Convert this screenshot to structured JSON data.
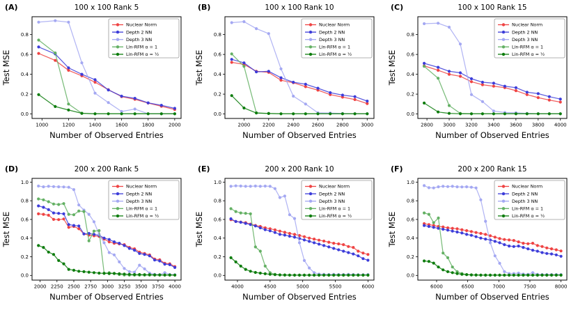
{
  "figure": {
    "xlabel": "Number of Observed Entries",
    "ylabel": "Test MSE"
  },
  "legend": {
    "position": "upper right",
    "items": [
      {
        "label": "Nuclear Norm",
        "color": "#ef4343"
      },
      {
        "label": "Depth 2 NN",
        "color": "#3c3cd9"
      },
      {
        "label": "Depth 3 NN",
        "color": "#a4a8f2"
      },
      {
        "label": "Lin-RFM α = 1",
        "color": "#63b063"
      },
      {
        "label": "Lin-RFM α = ½",
        "color": "#0d7c0d"
      }
    ]
  },
  "chart_data": [
    {
      "type": "line",
      "panel": "(A)",
      "title": "100 x 100 Rank 5",
      "xlabel": "Number of Observed Entries",
      "ylabel": "Test MSE",
      "grid": false,
      "legend_position": "upper right",
      "x": [
        975,
        1100,
        1200,
        1300,
        1400,
        1500,
        1600,
        1700,
        1800,
        1900,
        2000
      ],
      "xticks": [
        1000,
        1200,
        1400,
        1600,
        1800,
        2000
      ],
      "yticks": [
        0.0,
        0.2,
        0.4,
        0.6,
        0.8
      ],
      "xlim": [
        925,
        2048
      ],
      "ylim": [
        -0.045,
        0.98
      ],
      "series": [
        {
          "name": "Nuclear Norm",
          "values": [
            0.61,
            0.54,
            0.44,
            0.385,
            0.32,
            0.245,
            0.175,
            0.148,
            0.11,
            0.078,
            0.045
          ]
        },
        {
          "name": "Depth 2 NN",
          "values": [
            0.675,
            0.605,
            0.465,
            0.4,
            0.345,
            0.242,
            0.18,
            0.158,
            0.112,
            0.088,
            0.057
          ]
        },
        {
          "name": "Depth 3 NN",
          "values": [
            0.925,
            0.94,
            0.925,
            0.515,
            0.21,
            0.115,
            0.025,
            0.05,
            0.002,
            0.002,
            0.002
          ]
        },
        {
          "name": "Lin-RFM α = 1",
          "values": [
            0.745,
            0.615,
            0.1,
            0.007,
            0.002,
            0.002,
            0.002,
            0.002,
            0.002,
            0.002,
            0.002
          ]
        },
        {
          "name": "Lin-RFM α = ½",
          "values": [
            0.195,
            0.075,
            0.04,
            0.007,
            0.002,
            0.002,
            0.002,
            0.002,
            0.002,
            0.002,
            0.002
          ]
        }
      ]
    },
    {
      "type": "line",
      "panel": "(B)",
      "title": "100 x 100 Rank 10",
      "xlabel": "Number of Observed Entries",
      "ylabel": "Test MSE",
      "grid": false,
      "legend_position": "upper right",
      "x": [
        1900,
        2000,
        2100,
        2200,
        2300,
        2400,
        2500,
        2600,
        2700,
        2800,
        2900,
        3000
      ],
      "xticks": [
        2000,
        2200,
        2400,
        2600,
        2800,
        3000
      ],
      "yticks": [
        0.0,
        0.2,
        0.4,
        0.6,
        0.8
      ],
      "xlim": [
        1845,
        3055
      ],
      "ylim": [
        -0.045,
        0.98
      ],
      "series": [
        {
          "name": "Nuclear Norm",
          "values": [
            0.52,
            0.5,
            0.43,
            0.42,
            0.34,
            0.315,
            0.275,
            0.24,
            0.195,
            0.17,
            0.145,
            0.105
          ]
        },
        {
          "name": "Depth 2 NN",
          "values": [
            0.55,
            0.515,
            0.425,
            0.43,
            0.365,
            0.32,
            0.3,
            0.26,
            0.215,
            0.19,
            0.175,
            0.13
          ]
        },
        {
          "name": "Depth 3 NN",
          "values": [
            0.92,
            0.93,
            0.86,
            0.81,
            0.455,
            0.18,
            0.1,
            0.012,
            0.01,
            0.005,
            0.003,
            0.003
          ]
        },
        {
          "name": "Lin-RFM α = 1",
          "values": [
            0.605,
            0.48,
            0.012,
            0.005,
            0.002,
            0.002,
            0.002,
            0.002,
            0.002,
            0.002,
            0.002,
            0.002
          ]
        },
        {
          "name": "Lin-RFM α = ½",
          "values": [
            0.185,
            0.06,
            0.01,
            0.005,
            0.002,
            0.002,
            0.002,
            0.002,
            0.002,
            0.002,
            0.002,
            0.002
          ]
        }
      ]
    },
    {
      "type": "line",
      "panel": "(C)",
      "title": "100 x 100 Rank 15",
      "xlabel": "Number of Observed Entries",
      "ylabel": "Test MSE",
      "grid": false,
      "legend_position": "upper right",
      "x": [
        2775,
        2900,
        3000,
        3100,
        3200,
        3300,
        3400,
        3500,
        3600,
        3700,
        3800,
        3900,
        4000
      ],
      "xticks": [
        2800,
        3000,
        3200,
        3400,
        3600,
        3800,
        4000
      ],
      "yticks": [
        0.0,
        0.2,
        0.4,
        0.6,
        0.8
      ],
      "xlim": [
        2718,
        4058
      ],
      "ylim": [
        -0.045,
        0.98
      ],
      "series": [
        {
          "name": "Nuclear Norm",
          "values": [
            0.485,
            0.44,
            0.4,
            0.38,
            0.325,
            0.295,
            0.28,
            0.265,
            0.235,
            0.195,
            0.165,
            0.14,
            0.12
          ]
        },
        {
          "name": "Depth 2 NN",
          "values": [
            0.51,
            0.47,
            0.43,
            0.415,
            0.355,
            0.32,
            0.31,
            0.28,
            0.265,
            0.22,
            0.205,
            0.175,
            0.15
          ]
        },
        {
          "name": "Depth 3 NN",
          "values": [
            0.91,
            0.915,
            0.875,
            0.705,
            0.195,
            0.125,
            0.03,
            0.015,
            0.012,
            0.006,
            0.003,
            0.003,
            0.003
          ]
        },
        {
          "name": "Lin-RFM α = 1",
          "values": [
            0.48,
            0.36,
            0.085,
            0.006,
            0.002,
            0.002,
            0.002,
            0.002,
            0.002,
            0.002,
            0.002,
            0.002,
            0.002
          ]
        },
        {
          "name": "Lin-RFM α = ½",
          "values": [
            0.11,
            0.02,
            0.006,
            0.002,
            0.002,
            0.002,
            0.002,
            0.002,
            0.002,
            0.002,
            0.002,
            0.002,
            0.002
          ]
        }
      ]
    },
    {
      "type": "line",
      "panel": "(D)",
      "title": "200 x 200 Rank 5",
      "xlabel": "Number of Observed Entries",
      "ylabel": "Test MSE",
      "grid": false,
      "legend_position": "upper right",
      "x": [
        1975,
        2050,
        2125,
        2200,
        2275,
        2350,
        2425,
        2500,
        2575,
        2650,
        2725,
        2800,
        2875,
        2950,
        3025,
        3100,
        3175,
        3250,
        3325,
        3400,
        3475,
        3550,
        3625,
        3700,
        3775,
        3850,
        3925,
        4000
      ],
      "xticks": [
        2000,
        2250,
        2500,
        2750,
        3000,
        3250,
        3500,
        3750,
        4000
      ],
      "yticks": [
        0.0,
        0.2,
        0.4,
        0.6,
        0.8,
        1.0
      ],
      "xlim": [
        1880,
        4092
      ],
      "ylim": [
        -0.05,
        1.04
      ],
      "series": [
        {
          "name": "Nuclear Norm",
          "values": [
            0.66,
            0.655,
            0.645,
            0.6,
            0.598,
            0.605,
            0.515,
            0.525,
            0.5,
            0.445,
            0.432,
            0.425,
            0.418,
            0.39,
            0.36,
            0.345,
            0.338,
            0.33,
            0.3,
            0.285,
            0.25,
            0.235,
            0.22,
            0.175,
            0.168,
            0.13,
            0.125,
            0.095
          ]
        },
        {
          "name": "Depth 2 NN",
          "values": [
            0.745,
            0.73,
            0.705,
            0.67,
            0.665,
            0.66,
            0.545,
            0.535,
            0.53,
            0.445,
            0.45,
            0.44,
            0.43,
            0.4,
            0.385,
            0.36,
            0.345,
            0.32,
            0.29,
            0.27,
            0.235,
            0.225,
            0.21,
            0.165,
            0.155,
            0.12,
            0.115,
            0.085
          ]
        },
        {
          "name": "Depth 3 NN",
          "values": [
            0.958,
            0.95,
            0.955,
            0.952,
            0.95,
            0.948,
            0.945,
            0.92,
            0.755,
            0.7,
            0.655,
            0.575,
            0.44,
            0.35,
            0.245,
            0.22,
            0.145,
            0.075,
            0.04,
            0.035,
            0.11,
            0.07,
            0.025,
            0.012,
            0.008,
            0.03,
            0.01,
            0.008
          ]
        },
        {
          "name": "Lin-RFM α = 1",
          "values": [
            0.82,
            0.81,
            0.79,
            0.765,
            0.76,
            0.77,
            0.655,
            0.65,
            0.69,
            0.685,
            0.37,
            0.475,
            0.48,
            0.025,
            0.03,
            0.02,
            0.01,
            0.005,
            0.003,
            0.003,
            0.003,
            0.003,
            0.003,
            0.003,
            0.003,
            0.003,
            0.003,
            0.003
          ]
        },
        {
          "name": "Lin-RFM α = ½",
          "values": [
            0.32,
            0.3,
            0.25,
            0.225,
            0.16,
            0.125,
            0.065,
            0.055,
            0.045,
            0.04,
            0.035,
            0.03,
            0.025,
            0.022,
            0.02,
            0.022,
            0.018,
            0.015,
            0.012,
            0.01,
            0.01,
            0.008,
            0.008,
            0.006,
            0.006,
            0.005,
            0.005,
            0.004
          ]
        }
      ]
    },
    {
      "type": "line",
      "panel": "(E)",
      "title": "200 x 200 Rank 10",
      "xlabel": "Number of Observed Entries",
      "ylabel": "Test MSE",
      "grid": false,
      "legend_position": "upper right",
      "x": [
        3900,
        3975,
        4050,
        4125,
        4200,
        4275,
        4350,
        4425,
        4500,
        4575,
        4650,
        4725,
        4800,
        4875,
        4950,
        5025,
        5100,
        5175,
        5250,
        5325,
        5400,
        5475,
        5550,
        5625,
        5700,
        5775,
        5850,
        5925,
        6000
      ],
      "xticks": [
        4000,
        4500,
        5000,
        5500,
        6000
      ],
      "yticks": [
        0.0,
        0.2,
        0.4,
        0.6,
        0.8,
        1.0
      ],
      "xlim": [
        3808,
        6092
      ],
      "ylim": [
        -0.05,
        1.04
      ],
      "series": [
        {
          "name": "Nuclear Norm",
          "values": [
            0.597,
            0.578,
            0.572,
            0.565,
            0.55,
            0.535,
            0.525,
            0.51,
            0.5,
            0.488,
            0.475,
            0.462,
            0.45,
            0.44,
            0.428,
            0.415,
            0.4,
            0.39,
            0.378,
            0.368,
            0.356,
            0.345,
            0.338,
            0.33,
            0.31,
            0.3,
            0.26,
            0.24,
            0.225
          ]
        },
        {
          "name": "Depth 2 NN",
          "values": [
            0.607,
            0.578,
            0.57,
            0.558,
            0.545,
            0.53,
            0.51,
            0.49,
            0.478,
            0.46,
            0.44,
            0.432,
            0.42,
            0.41,
            0.395,
            0.38,
            0.365,
            0.35,
            0.335,
            0.32,
            0.305,
            0.29,
            0.275,
            0.26,
            0.245,
            0.23,
            0.21,
            0.18,
            0.163
          ]
        },
        {
          "name": "Depth 3 NN",
          "values": [
            0.955,
            0.96,
            0.958,
            0.955,
            0.955,
            0.958,
            0.955,
            0.957,
            0.955,
            0.93,
            0.835,
            0.85,
            0.65,
            0.61,
            0.35,
            0.16,
            0.08,
            0.03,
            0.015,
            0.012,
            0.01,
            0.012,
            0.01,
            0.01,
            0.012,
            0.01,
            0.008,
            0.008,
            0.01
          ]
        },
        {
          "name": "Lin-RFM α = 1",
          "values": [
            0.715,
            0.685,
            0.67,
            0.665,
            0.66,
            0.305,
            0.26,
            0.1,
            0.03,
            0.012,
            0.005,
            0.003,
            0.003,
            0.003,
            0.003,
            0.003,
            0.003,
            0.003,
            0.003,
            0.003,
            0.003,
            0.003,
            0.003,
            0.003,
            0.003,
            0.003,
            0.003,
            0.003,
            0.003
          ]
        },
        {
          "name": "Lin-RFM α = ½",
          "values": [
            0.19,
            0.145,
            0.1,
            0.065,
            0.045,
            0.032,
            0.025,
            0.018,
            0.012,
            0.008,
            0.006,
            0.005,
            0.004,
            0.003,
            0.003,
            0.003,
            0.003,
            0.003,
            0.003,
            0.003,
            0.003,
            0.003,
            0.003,
            0.003,
            0.003,
            0.003,
            0.003,
            0.003,
            0.003
          ]
        }
      ]
    },
    {
      "type": "line",
      "panel": "(F)",
      "title": "200 x 200 Rank 15",
      "xlabel": "Number of Observed Entries",
      "ylabel": "Test MSE",
      "grid": false,
      "legend_position": "upper right",
      "x": [
        5800,
        5876,
        5952,
        6028,
        6103,
        6179,
        6255,
        6331,
        6407,
        6483,
        6559,
        6634,
        6710,
        6786,
        6862,
        6938,
        7014,
        7090,
        7166,
        7241,
        7317,
        7393,
        7469,
        7545,
        7621,
        7697,
        7772,
        7848,
        7924,
        8000
      ],
      "xticks": [
        6000,
        6500,
        7000,
        7500,
        8000
      ],
      "yticks": [
        0.0,
        0.2,
        0.4,
        0.6,
        0.8,
        1.0
      ],
      "xlim": [
        5698,
        8094
      ],
      "ylim": [
        -0.05,
        1.04
      ],
      "series": [
        {
          "name": "Nuclear Norm",
          "values": [
            0.555,
            0.545,
            0.535,
            0.525,
            0.52,
            0.51,
            0.505,
            0.5,
            0.49,
            0.48,
            0.47,
            0.46,
            0.45,
            0.44,
            0.425,
            0.41,
            0.395,
            0.385,
            0.38,
            0.375,
            0.36,
            0.345,
            0.34,
            0.345,
            0.32,
            0.31,
            0.295,
            0.285,
            0.275,
            0.262
          ]
        },
        {
          "name": "Depth 2 NN",
          "values": [
            0.535,
            0.525,
            0.515,
            0.505,
            0.495,
            0.485,
            0.475,
            0.465,
            0.455,
            0.44,
            0.43,
            0.415,
            0.4,
            0.39,
            0.38,
            0.365,
            0.35,
            0.33,
            0.315,
            0.31,
            0.315,
            0.3,
            0.285,
            0.27,
            0.26,
            0.245,
            0.235,
            0.23,
            0.22,
            0.205
          ]
        },
        {
          "name": "Depth 3 NN",
          "values": [
            0.962,
            0.94,
            0.938,
            0.95,
            0.955,
            0.952,
            0.955,
            0.95,
            0.948,
            0.95,
            0.945,
            0.938,
            0.81,
            0.58,
            0.35,
            0.21,
            0.13,
            0.04,
            0.02,
            0.02,
            0.025,
            0.015,
            0.012,
            0.03,
            0.012,
            0.01,
            0.01,
            0.01,
            0.01,
            0.01
          ]
        },
        {
          "name": "Lin-RFM α = 1",
          "values": [
            0.67,
            0.655,
            0.565,
            0.615,
            0.24,
            0.19,
            0.09,
            0.04,
            0.02,
            0.01,
            0.005,
            0.003,
            0.003,
            0.003,
            0.003,
            0.003,
            0.003,
            0.003,
            0.003,
            0.003,
            0.003,
            0.003,
            0.003,
            0.003,
            0.003,
            0.003,
            0.003,
            0.003,
            0.003,
            0.003
          ]
        },
        {
          "name": "Lin-RFM α = ½",
          "values": [
            0.155,
            0.15,
            0.132,
            0.09,
            0.06,
            0.04,
            0.03,
            0.02,
            0.012,
            0.008,
            0.006,
            0.005,
            0.004,
            0.003,
            0.003,
            0.003,
            0.003,
            0.003,
            0.003,
            0.003,
            0.003,
            0.003,
            0.003,
            0.003,
            0.003,
            0.003,
            0.003,
            0.003,
            0.003,
            0.003
          ]
        }
      ]
    }
  ]
}
